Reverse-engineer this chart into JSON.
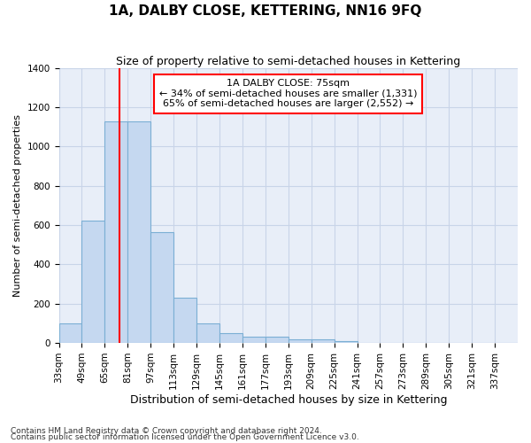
{
  "title": "1A, DALBY CLOSE, KETTERING, NN16 9FQ",
  "subtitle": "Size of property relative to semi-detached houses in Kettering",
  "xlabel": "Distribution of semi-detached houses by size in Kettering",
  "ylabel": "Number of semi-detached properties",
  "footnote1": "Contains HM Land Registry data © Crown copyright and database right 2024.",
  "footnote2": "Contains public sector information licensed under the Open Government Licence v3.0.",
  "annotation_title": "1A DALBY CLOSE: 75sqm",
  "annotation_line1": "← 34% of semi-detached houses are smaller (1,331)",
  "annotation_line2": "65% of semi-detached houses are larger (2,552) →",
  "property_value": 75,
  "bin_edges": [
    33,
    49,
    65,
    81,
    97,
    113,
    129,
    145,
    161,
    177,
    193,
    209,
    225,
    241,
    257,
    273,
    289,
    305,
    321,
    337,
    353
  ],
  "bar_heights": [
    100,
    625,
    1130,
    1130,
    565,
    230,
    100,
    50,
    30,
    30,
    20,
    20,
    10,
    0,
    0,
    0,
    0,
    0,
    0,
    0
  ],
  "bar_color": "#C5D8F0",
  "bar_edge_color": "#7BAFD4",
  "red_line_x": 75,
  "annotation_box_color": "white",
  "annotation_box_edge": "red",
  "grid_color": "#C8D4E8",
  "bg_color": "#E8EEF8",
  "ylim": [
    0,
    1400
  ],
  "yticks": [
    0,
    200,
    400,
    600,
    800,
    1000,
    1200,
    1400
  ],
  "title_fontsize": 11,
  "subtitle_fontsize": 9,
  "xlabel_fontsize": 9,
  "ylabel_fontsize": 8,
  "annotation_fontsize": 8,
  "tick_fontsize": 7.5,
  "footnote_fontsize": 6.5
}
